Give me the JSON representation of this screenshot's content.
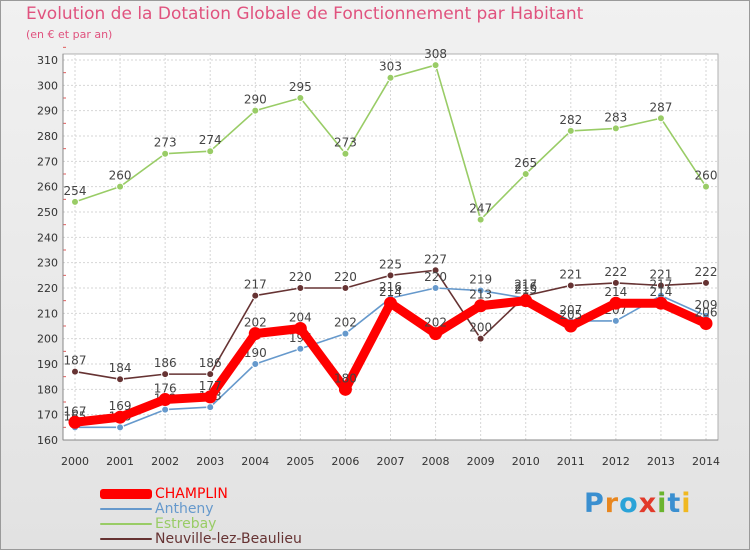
{
  "chart_data": {
    "type": "line",
    "title": "Evolution de la Dotation Globale de Fonctionnement par Habitant",
    "subtitle": "(en € et par an)",
    "xlabel": "",
    "ylabel": "",
    "ylim": [
      160,
      310
    ],
    "yticks": [
      160,
      170,
      180,
      190,
      200,
      210,
      220,
      230,
      240,
      250,
      260,
      270,
      280,
      290,
      300,
      310
    ],
    "categories": [
      "2000",
      "2001",
      "2002",
      "2003",
      "2004",
      "2005",
      "2006",
      "2007",
      "2008",
      "2009",
      "2010",
      "2011",
      "2012",
      "2013",
      "2014"
    ],
    "grid": true,
    "legend_position": "bottom-left",
    "series": [
      {
        "name": "CHAMPLIN",
        "color": "#ff0000",
        "values": [
          167,
          169,
          176,
          177,
          202,
          204,
          180,
          214,
          202,
          213,
          215,
          205,
          214,
          214,
          206
        ]
      },
      {
        "name": "Antheny",
        "color": "#6699cc",
        "values": [
          165,
          165,
          172,
          173,
          190,
          196,
          202,
          216,
          220,
          219,
          216,
          207,
          207,
          217,
          209
        ]
      },
      {
        "name": "Estrebay",
        "color": "#99cc66",
        "values": [
          254,
          260,
          273,
          274,
          290,
          295,
          273,
          303,
          308,
          247,
          265,
          282,
          283,
          287,
          260
        ]
      },
      {
        "name": "Neuville-lez-Beaulieu",
        "color": "#663333",
        "values": [
          187,
          184,
          186,
          186,
          217,
          220,
          220,
          225,
          227,
          200,
          217,
          221,
          222,
          221,
          222
        ]
      }
    ]
  },
  "legend": {
    "items": [
      {
        "label": "CHAMPLIN",
        "color": "#ff0000"
      },
      {
        "label": "Antheny",
        "color": "#6699cc"
      },
      {
        "label": "Estrebay",
        "color": "#99cc66"
      },
      {
        "label": "Neuville-lez-Beaulieu",
        "color": "#663333"
      }
    ]
  },
  "logo": {
    "text": "Proxiti",
    "letters": [
      "P",
      "r",
      "o",
      "x",
      "i",
      "t",
      "i"
    ],
    "colors": [
      "#3a8fd0",
      "#e8861e",
      "#2aa3d8",
      "#e23a2a",
      "#6ab42e",
      "#3a8fd0",
      "#f0b820"
    ]
  }
}
